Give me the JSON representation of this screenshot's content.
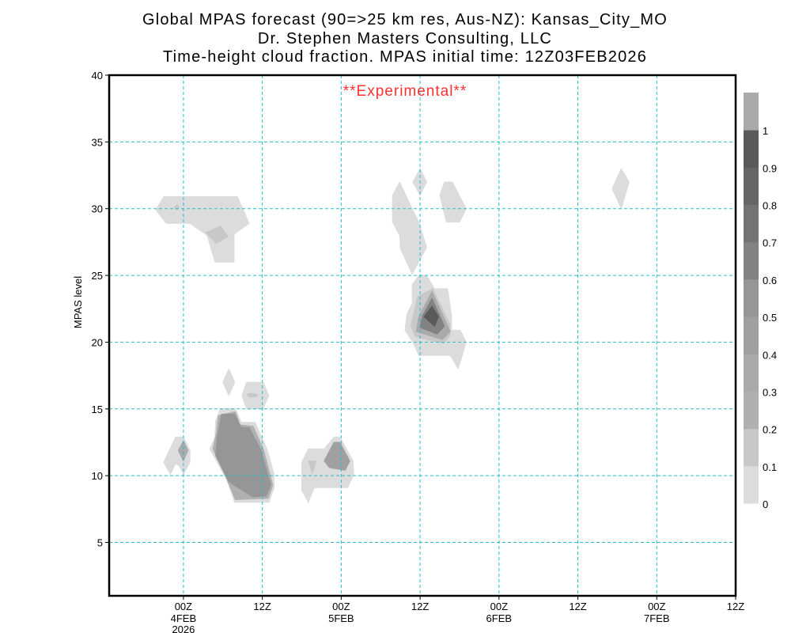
{
  "titles": {
    "line1": "Global MPAS forecast (90=>25 km res, Aus-NZ): Kansas_City_MO",
    "line2": "Dr. Stephen Masters Consulting, LLC",
    "line3": "Time-height cloud fraction.   MPAS initial time: 12Z03FEB2026"
  },
  "chart_data": {
    "type": "contour",
    "title": "Time-height cloud fraction",
    "annotation": "**Experimental**",
    "annotation_color": "#ff3030",
    "xlabel": "",
    "ylabel": "MPAS level",
    "x_units": "hours since 00Z 4FEB2026",
    "xlim": [
      -11.3,
      84
    ],
    "ylim": [
      1,
      40
    ],
    "grid": true,
    "grid_color": "#20c0c8",
    "x_ticks": [
      {
        "value": 0,
        "label": "00Z",
        "sub": "4FEB",
        "sub2": "2026"
      },
      {
        "value": 12,
        "label": "12Z",
        "sub": "",
        "sub2": ""
      },
      {
        "value": 24,
        "label": "00Z",
        "sub": "5FEB",
        "sub2": ""
      },
      {
        "value": 36,
        "label": "12Z",
        "sub": "",
        "sub2": ""
      },
      {
        "value": 48,
        "label": "00Z",
        "sub": "6FEB",
        "sub2": ""
      },
      {
        "value": 60,
        "label": "12Z",
        "sub": "",
        "sub2": ""
      },
      {
        "value": 72,
        "label": "00Z",
        "sub": "7FEB",
        "sub2": ""
      },
      {
        "value": 84,
        "label": "12Z",
        "sub": "",
        "sub2": ""
      }
    ],
    "y_ticks": [
      5,
      10,
      15,
      20,
      25,
      30,
      35,
      40
    ],
    "colorbar": {
      "levels": [
        "0",
        "0.1",
        "0.2",
        "0.3",
        "0.4",
        "0.5",
        "0.6",
        "0.7",
        "0.8",
        "0.9",
        "1"
      ],
      "colors": [
        "#dcdcdc",
        "#c8c8c8",
        "#b0b0b0",
        "#aaaaaa",
        "#a0a0a0",
        "#969696",
        "#828282",
        "#737373",
        "#666666",
        "#5a5a5a",
        "#aaaaaa"
      ]
    },
    "features": [
      {
        "name": "upper-left-cloud",
        "contours": [
          {
            "value": 0.05,
            "points": [
              [
                -4.2,
                29.9
              ],
              [
                -3,
                30.9
              ],
              [
                8.2,
                30.9
              ],
              [
                10,
                28.9
              ],
              [
                7.7,
                28.1
              ],
              [
                7.7,
                26
              ],
              [
                4.8,
                26
              ],
              [
                3.6,
                28
              ],
              [
                1,
                28.9
              ],
              [
                -2.6,
                28.9
              ]
            ]
          },
          {
            "value": 0.15,
            "points": [
              [
                3.4,
                28.2
              ],
              [
                5.6,
                28.7
              ],
              [
                6.8,
                27.9
              ],
              [
                5,
                27.4
              ]
            ]
          },
          {
            "value": 0.15,
            "points": [
              [
                -1.4,
                30.1
              ],
              [
                -1,
                30.3
              ],
              [
                -0.6,
                30.1
              ],
              [
                -1,
                29.9
              ]
            ]
          }
        ]
      },
      {
        "name": "low-cloud-0z4feb",
        "contours": [
          {
            "value": 0.05,
            "points": [
              [
                -3,
                11
              ],
              [
                -1.2,
                12.9
              ],
              [
                0,
                12.9
              ],
              [
                1,
                11.9
              ],
              [
                1,
                11
              ],
              [
                0,
                10.1
              ],
              [
                -0.6,
                10.7
              ],
              [
                -1.2,
                10.9
              ],
              [
                -2,
                10.1
              ]
            ]
          },
          {
            "value": 0.3,
            "points": [
              [
                -0.8,
                11.9
              ],
              [
                0,
                12.6
              ],
              [
                0.7,
                11.9
              ],
              [
                0,
                11.1
              ]
            ]
          }
        ]
      },
      {
        "name": "low-cloud-main",
        "contours": [
          {
            "value": 0.05,
            "points": [
              [
                4,
                12
              ],
              [
                4.8,
                12.9
              ],
              [
                4.9,
                14.1
              ],
              [
                5.6,
                15
              ],
              [
                7.9,
                15
              ],
              [
                8.8,
                14
              ],
              [
                10.9,
                14
              ],
              [
                12.7,
                12
              ],
              [
                13.8,
                10.1
              ],
              [
                13.8,
                9.1
              ],
              [
                13,
                8
              ],
              [
                7.8,
                8
              ],
              [
                6.6,
                9.7
              ]
            ]
          },
          {
            "value": 0.25,
            "points": [
              [
                4.5,
                12
              ],
              [
                5,
                13.2
              ],
              [
                5.3,
                14.5
              ],
              [
                7.9,
                14.8
              ],
              [
                8.6,
                13.8
              ],
              [
                10.6,
                13.7
              ],
              [
                12.2,
                11.9
              ],
              [
                13.6,
                9.3
              ],
              [
                12.9,
                8.3
              ],
              [
                7.9,
                8.2
              ],
              [
                6.7,
                9.6
              ]
            ]
          },
          {
            "value": 0.5,
            "points": [
              [
                5.16,
                12.9
              ],
              [
                5.8,
                14.6
              ],
              [
                7.8,
                14.6
              ],
              [
                8.8,
                13.6
              ],
              [
                10,
                13.6
              ],
              [
                11.8,
                11.9
              ],
              [
                13.3,
                9.3
              ],
              [
                12.6,
                8.5
              ],
              [
                10.6,
                8.4
              ],
              [
                7,
                9.5
              ],
              [
                4.9,
                11.5
              ]
            ]
          }
        ]
      },
      {
        "name": "low-cloud-0z5feb",
        "contours": [
          {
            "value": 0.05,
            "points": [
              [
                18,
                11
              ],
              [
                19,
                12
              ],
              [
                21.4,
                12
              ],
              [
                22.9,
                12.9
              ],
              [
                23.8,
                12.9
              ],
              [
                25.8,
                11.1
              ],
              [
                25.9,
                10.1
              ],
              [
                25,
                9.1
              ],
              [
                19.9,
                9.1
              ],
              [
                19,
                8
              ],
              [
                18,
                8.9
              ]
            ]
          },
          {
            "value": 0.15,
            "points": [
              [
                19,
                11.1
              ],
              [
                20.2,
                11.1
              ],
              [
                19.6,
                10.2
              ]
            ]
          },
          {
            "value": 0.4,
            "points": [
              [
                21.4,
                11.1
              ],
              [
                22.9,
                12.5
              ],
              [
                23.8,
                12.5
              ],
              [
                25.3,
                11.1
              ],
              [
                24.6,
                10.4
              ],
              [
                22.2,
                10.6
              ]
            ]
          }
        ]
      },
      {
        "name": "mid-cloud-diamond",
        "contours": [
          {
            "value": 0.05,
            "points": [
              [
                6,
                17
              ],
              [
                6.9,
                18
              ],
              [
                7.8,
                17
              ],
              [
                6.9,
                16
              ]
            ]
          }
        ]
      },
      {
        "name": "mid-cloud-hexagon",
        "contours": [
          {
            "value": 0.05,
            "points": [
              [
                8.9,
                16
              ],
              [
                9.6,
                17
              ],
              [
                12.1,
                17
              ],
              [
                13,
                16
              ],
              [
                12.1,
                15
              ],
              [
                9.6,
                15
              ]
            ]
          },
          {
            "value": 0.15,
            "points": [
              [
                9.7,
                16.05
              ],
              [
                10,
                16.15
              ],
              [
                11,
                16.15
              ],
              [
                11.3,
                16.05
              ],
              [
                11,
                15.9
              ],
              [
                10,
                15.9
              ]
            ]
          }
        ]
      },
      {
        "name": "upper-cloud-12z",
        "contours": [
          {
            "value": 0.05,
            "points": [
              [
                31.8,
                31
              ],
              [
                32.9,
                32
              ],
              [
                34.9,
                29.9
              ],
              [
                35.8,
                29
              ],
              [
                37,
                27.1
              ],
              [
                34.8,
                25.1
              ],
              [
                33,
                27
              ],
              [
                32.9,
                28
              ],
              [
                31.8,
                29
              ]
            ]
          }
        ]
      },
      {
        "name": "upper-cloud-diamond",
        "contours": [
          {
            "value": 0.05,
            "points": [
              [
                34.9,
                32
              ],
              [
                36,
                33
              ],
              [
                37,
                32
              ],
              [
                36,
                31
              ]
            ]
          }
        ]
      },
      {
        "name": "upper-cloud-hexagon",
        "contours": [
          {
            "value": 0.05,
            "points": [
              [
                39,
                31
              ],
              [
                39.7,
                32
              ],
              [
                40.9,
                32
              ],
              [
                43,
                30
              ],
              [
                42,
                29
              ],
              [
                40,
                29
              ]
            ]
          }
        ]
      },
      {
        "name": "mid-cloud-core",
        "contours": [
          {
            "value": 0.05,
            "points": [
              [
                35.8,
                25
              ],
              [
                37,
                25
              ],
              [
                38.2,
                24
              ],
              [
                40.2,
                24
              ],
              [
                40.8,
                21.9
              ],
              [
                40.8,
                20.9
              ],
              [
                42.1,
                20.9
              ],
              [
                43,
                20
              ],
              [
                41.8,
                18
              ],
              [
                40.6,
                19
              ],
              [
                35.8,
                19
              ],
              [
                34.9,
                20
              ],
              [
                33.7,
                20.9
              ],
              [
                34,
                22.1
              ],
              [
                34.8,
                22.9
              ],
              [
                34.8,
                24.3
              ]
            ]
          },
          {
            "value": 0.15,
            "points": [
              [
                35.6,
                23.4
              ],
              [
                37.9,
                24
              ],
              [
                40.5,
                21.4
              ],
              [
                40.6,
                20.5
              ],
              [
                39.6,
                19.9
              ],
              [
                35.3,
                20.4
              ],
              [
                34.6,
                21.2
              ]
            ]
          },
          {
            "value": 0.35,
            "points": [
              [
                37.8,
                23.8
              ],
              [
                40.6,
                20.8
              ],
              [
                39.4,
                20.2
              ],
              [
                35.4,
                20.8
              ],
              [
                35.8,
                21.9
              ]
            ]
          },
          {
            "value": 0.6,
            "points": [
              [
                37.8,
                23.3
              ],
              [
                39.7,
                21.2
              ],
              [
                38.6,
                20.6
              ],
              [
                36,
                21.1
              ],
              [
                36.4,
                22
              ]
            ]
          },
          {
            "value": 0.9,
            "points": [
              [
                37.8,
                22.7
              ],
              [
                38.8,
                21.9
              ],
              [
                38.2,
                21.2
              ],
              [
                36.6,
                21.9
              ]
            ]
          }
        ]
      },
      {
        "name": "far-right-cloud",
        "contours": [
          {
            "value": 0.05,
            "points": [
              [
                65.2,
                31.5
              ],
              [
                66.6,
                33
              ],
              [
                67.8,
                32
              ],
              [
                66.6,
                30
              ]
            ]
          }
        ]
      }
    ]
  }
}
